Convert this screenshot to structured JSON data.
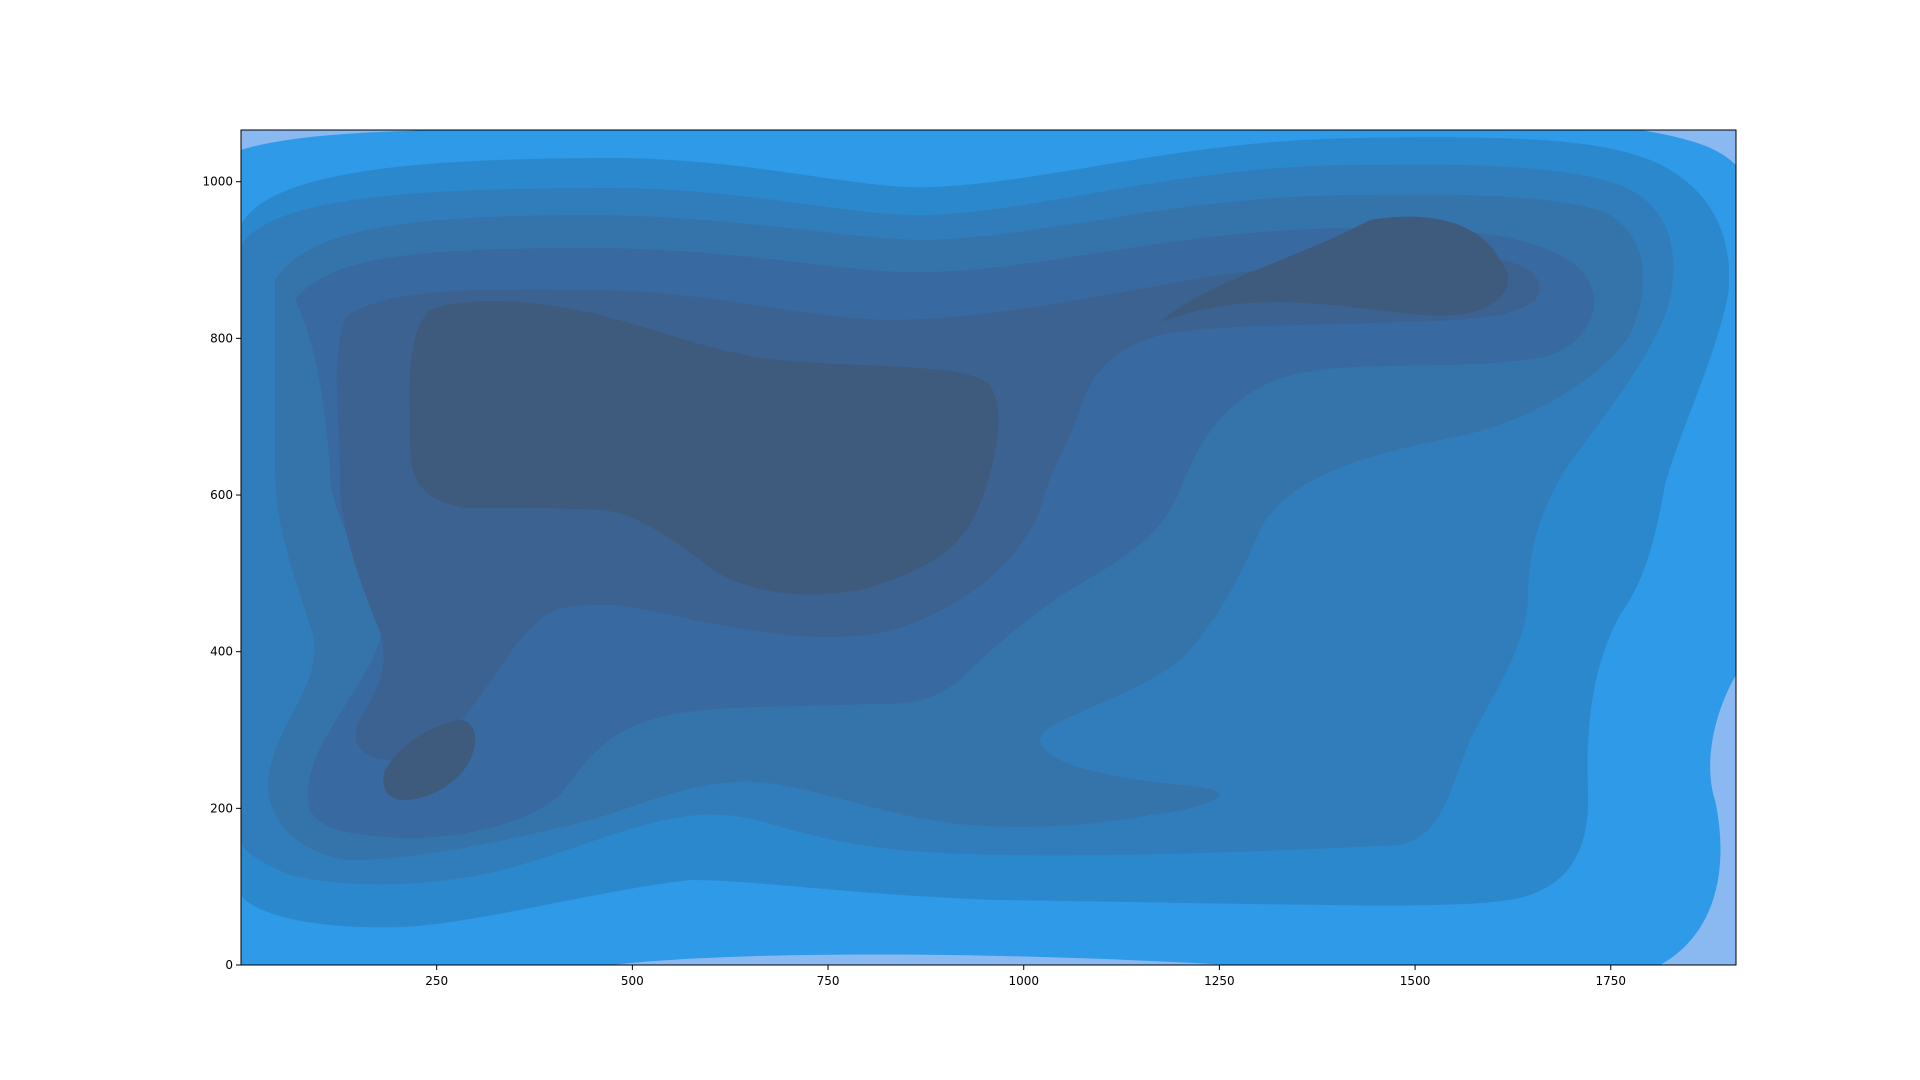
{
  "chart_data": {
    "type": "contour",
    "title": "",
    "xlabel": "",
    "ylabel": "",
    "xlim": [
      0,
      1910
    ],
    "ylim": [
      0,
      1066
    ],
    "x_ticks": [
      250,
      500,
      750,
      1000,
      1250,
      1500,
      1750
    ],
    "y_ticks": [
      0,
      200,
      400,
      600,
      800,
      1000
    ],
    "x_tick_labels": [
      "250",
      "500",
      "750",
      "1000",
      "1250",
      "1500",
      "1750"
    ],
    "y_tick_labels": [
      "0",
      "200",
      "400",
      "600",
      "800",
      "1000"
    ],
    "grid": false,
    "legend": "none",
    "levels": [
      {
        "level": 0,
        "color": "#8AB8F0"
      },
      {
        "level": 1,
        "color": "#2E9AE8"
      },
      {
        "level": 2,
        "color": "#2C88CC"
      },
      {
        "level": 3,
        "color": "#317DBB"
      },
      {
        "level": 4,
        "color": "#3574AA"
      },
      {
        "level": 5,
        "color": "#3869A0"
      },
      {
        "level": 6,
        "color": "#3B6290"
      },
      {
        "level": 7,
        "color": "#3E5B7E"
      }
    ],
    "peaks": [
      {
        "x": 660,
        "y": 700,
        "level": 7
      },
      {
        "x": 1500,
        "y": 890,
        "level": 7
      },
      {
        "x": 255,
        "y": 250,
        "level": 7
      }
    ]
  }
}
